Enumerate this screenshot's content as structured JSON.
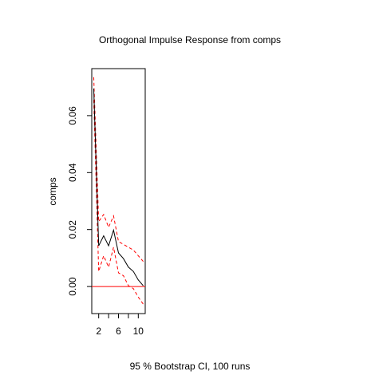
{
  "chart_data": {
    "type": "line",
    "title": "Orthogonal Impulse Response from comps",
    "xlabel": "95 % Bootstrap CI,  100 runs",
    "ylabel": "comps",
    "xlim": [
      0.6,
      11.4
    ],
    "ylim": [
      -0.0095,
      0.0765
    ],
    "x_ticks": [
      2,
      6,
      10
    ],
    "y_ticks": [
      0.0,
      0.02,
      0.04,
      0.06
    ],
    "y_tick_labels": [
      "0.00",
      "0.02",
      "0.04",
      "0.06"
    ],
    "x": [
      1,
      2,
      3,
      4,
      5,
      6,
      7,
      8,
      9,
      10,
      11
    ],
    "series": [
      {
        "role": "irf",
        "color": "#000000",
        "dash": "solid",
        "values": [
          0.0695,
          0.0143,
          0.0178,
          0.0143,
          0.0198,
          0.0118,
          0.0098,
          0.0068,
          0.0053,
          0.0023,
          0.0003
        ]
      },
      {
        "role": "upper",
        "color": "#ff0000",
        "dash": "dashed",
        "values": [
          0.0735,
          0.0228,
          0.0253,
          0.0208,
          0.0248,
          0.0158,
          0.0148,
          0.0138,
          0.0128,
          0.0108,
          0.0088
        ]
      },
      {
        "role": "lower",
        "color": "#ff0000",
        "dash": "dashed",
        "values": [
          0.0655,
          0.0053,
          0.0108,
          0.0068,
          0.0138,
          0.0048,
          0.0038,
          0.0003,
          -0.0007,
          -0.0037,
          -0.0062
        ]
      }
    ],
    "zero_line": {
      "y": 0,
      "color": "#ff0000"
    },
    "grid": false,
    "legend": "none"
  }
}
